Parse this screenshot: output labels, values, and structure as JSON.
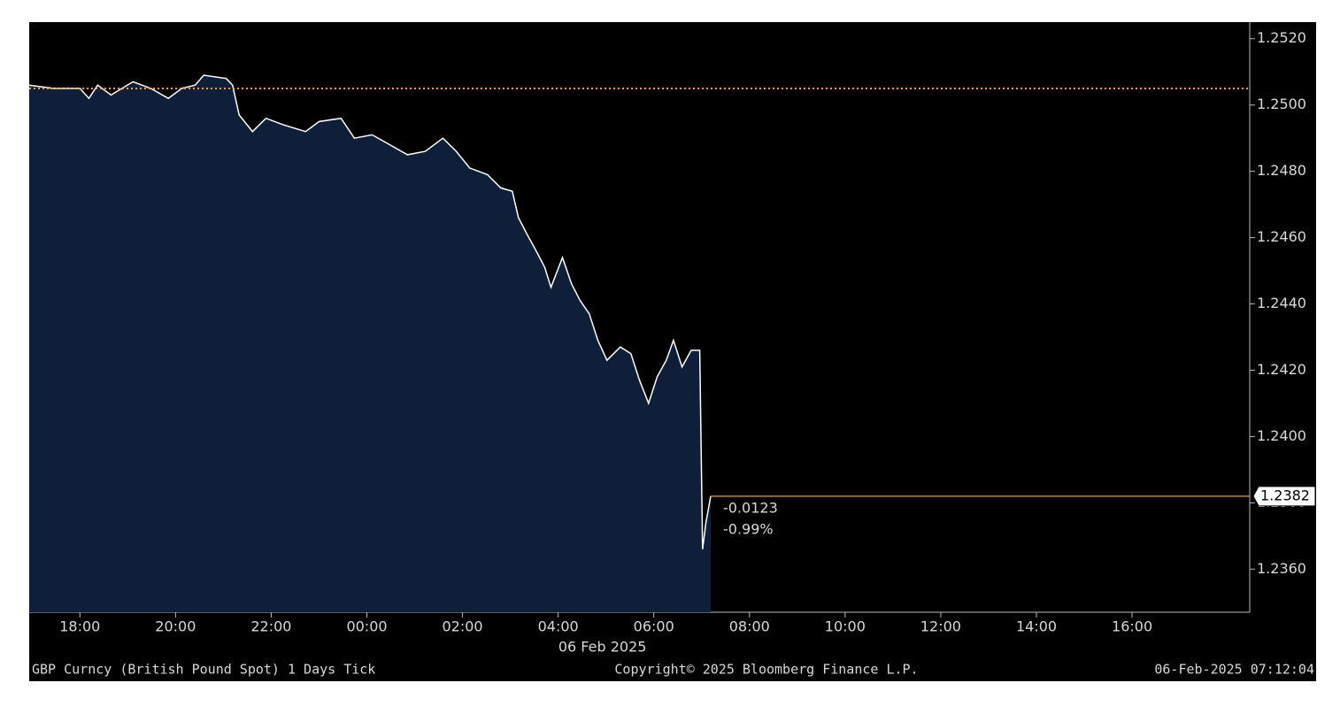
{
  "chart_data": {
    "type": "line",
    "x": [
      16.94,
      17.44,
      18.0,
      18.19,
      18.37,
      18.65,
      19.11,
      19.48,
      19.85,
      20.13,
      20.41,
      20.59,
      21.06,
      21.19,
      21.33,
      21.61,
      21.89,
      22.26,
      22.72,
      23.0,
      23.46,
      23.74,
      24.11,
      24.48,
      24.85,
      25.22,
      25.59,
      25.87,
      26.15,
      26.52,
      26.8,
      27.04,
      27.17,
      27.35,
      27.54,
      27.72,
      27.85,
      28.09,
      28.28,
      28.46,
      28.65,
      28.83,
      29.02,
      29.3,
      29.52,
      29.7,
      29.89,
      30.07,
      30.26,
      30.41,
      30.59,
      30.78,
      30.96,
      31.02,
      31.09,
      31.19
    ],
    "values": [
      1.2506,
      1.2505,
      1.2505,
      1.2502,
      1.2506,
      1.2503,
      1.2507,
      1.2505,
      1.2502,
      1.2505,
      1.2506,
      1.2509,
      1.2508,
      1.2506,
      1.2497,
      1.2492,
      1.2496,
      1.2494,
      1.2492,
      1.2495,
      1.2496,
      1.249,
      1.2491,
      1.2488,
      1.2485,
      1.2486,
      1.249,
      1.2486,
      1.2481,
      1.2479,
      1.2475,
      1.2474,
      1.2466,
      1.2461,
      1.2456,
      1.2451,
      1.2445,
      1.2454,
      1.2446,
      1.2441,
      1.2437,
      1.2429,
      1.2423,
      1.2427,
      1.2425,
      1.2417,
      1.241,
      1.2418,
      1.2423,
      1.2429,
      1.2421,
      1.2426,
      1.2426,
      1.2366,
      1.2374,
      1.2382
    ],
    "color": "#ffffff",
    "area_color": "#0f1f3a",
    "prev_close": 1.2505,
    "prev_close_color": "#e8a040",
    "last_price": {
      "value": 1.2382,
      "label": "1.2382"
    },
    "last_price_color": "#e8a040",
    "annotations": [
      "-0.0123",
      "-0.99%"
    ],
    "xlim": [
      16.94,
      42.46
    ],
    "ylim": [
      1.2347,
      1.2525
    ],
    "xticks": [
      {
        "value": 18,
        "label": "18:00"
      },
      {
        "value": 20,
        "label": "20:00"
      },
      {
        "value": 22,
        "label": "22:00"
      },
      {
        "value": 24,
        "label": "00:00"
      },
      {
        "value": 26,
        "label": "02:00"
      },
      {
        "value": 28,
        "label": "04:00"
      },
      {
        "value": 30,
        "label": "06:00"
      },
      {
        "value": 32,
        "label": "08:00"
      },
      {
        "value": 34,
        "label": "10:00"
      },
      {
        "value": 36,
        "label": "12:00"
      },
      {
        "value": 38,
        "label": "14:00"
      },
      {
        "value": 40,
        "label": "16:00"
      }
    ],
    "date_label": "06 Feb 2025",
    "yticks": [
      {
        "value": 1.236,
        "label": "1.2360"
      },
      {
        "value": 1.238,
        "label": "1.2380"
      },
      {
        "value": 1.24,
        "label": "1.2400"
      },
      {
        "value": 1.242,
        "label": "1.2420"
      },
      {
        "value": 1.244,
        "label": "1.2440"
      },
      {
        "value": 1.246,
        "label": "1.2460"
      },
      {
        "value": 1.248,
        "label": "1.2480"
      },
      {
        "value": 1.25,
        "label": "1.2500"
      },
      {
        "value": 1.252,
        "label": "1.2520"
      }
    ],
    "footer": {
      "left": "GBP Curncy (British Pound Spot) 1 Days  Tick",
      "center": "Copyright© 2025 Bloomberg Finance L.P.",
      "right": "06-Feb-2025 07:12:04"
    }
  }
}
